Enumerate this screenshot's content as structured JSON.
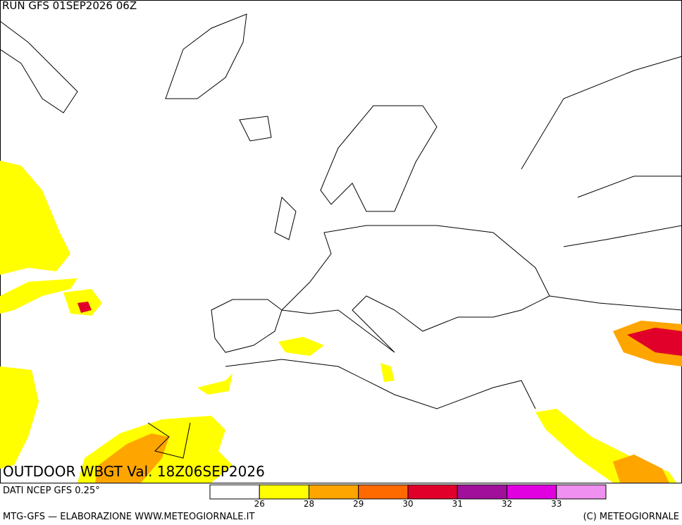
{
  "header": {
    "run": "RUN GFS 01SEP2026 06Z"
  },
  "map_title": "OUTDOOR WBGT Val. 18Z06SEP2026",
  "source": "DATI NCEP GFS 0.25°",
  "colorbar": {
    "colors": [
      "#ffffff",
      "#ffff00",
      "#ffa500",
      "#ff6a00",
      "#e0002a",
      "#a0109a",
      "#e000e0",
      "#f090f0"
    ],
    "ticks": [
      26,
      28,
      29,
      30,
      31,
      32,
      33
    ]
  },
  "footer": {
    "left": "MTG-GFS — ELABORAZIONE WWW.METEOGIORNALE.IT",
    "right": "(C) METEOGIORNALE"
  }
}
